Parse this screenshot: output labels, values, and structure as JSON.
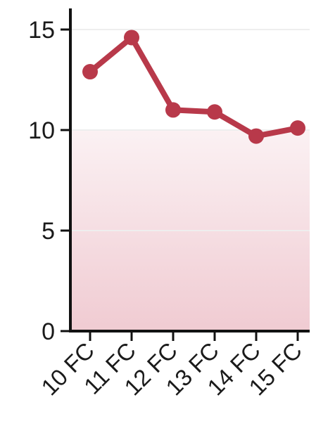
{
  "chart_data": {
    "type": "line",
    "categories": [
      "10 FC",
      "11 FC",
      "12 FC",
      "13 FC",
      "14 FC",
      "15 FC"
    ],
    "values": [
      12.9,
      14.6,
      11.0,
      10.9,
      9.7,
      10.1
    ],
    "ylim": [
      0,
      15
    ],
    "yticks": [
      0,
      5,
      10,
      15
    ],
    "ytick_labels": [
      "0",
      "5",
      "10",
      "15"
    ],
    "title": "",
    "xlabel": "",
    "ylabel": "",
    "grid": "horizontal",
    "area_fill": true,
    "colors": {
      "line": "#b8394a",
      "marker": "#b8394a",
      "area_top": "#fbf1f3",
      "area_bottom": "#f0cbd2",
      "axis": "#111111",
      "grid": "#eeeeee"
    }
  }
}
